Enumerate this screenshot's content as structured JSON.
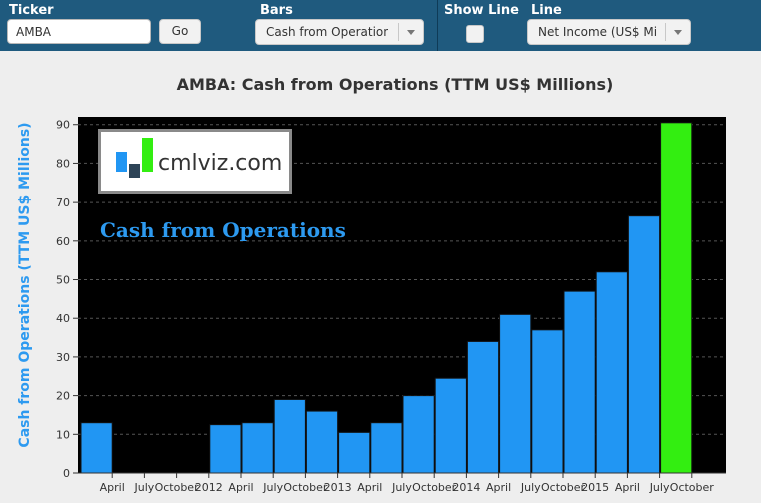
{
  "controls": {
    "ticker_label": "Ticker",
    "ticker_value": "AMBA",
    "go_label": "Go",
    "bars_label": "Bars",
    "bars_value": "Cash from Operations",
    "show_line_label": "Show Line",
    "line_label": "Line",
    "line_value": "Net Income (US$ Millions)"
  },
  "logo": {
    "text": "cmlviz.com"
  },
  "series_caption": "Cash from Operations",
  "colors": {
    "bar": "#2196f3",
    "highlight_bar": "#33ee11",
    "plot_bg": "#000000",
    "header_bg": "#1f5a7e"
  },
  "chart_data": {
    "type": "bar",
    "title": "AMBA: Cash from Operations (TTM US$ Millions)",
    "ylabel": "Cash from Operations (TTM US$ Millions)",
    "ylim": [
      0,
      92
    ],
    "yticks": [
      0,
      10,
      20,
      30,
      40,
      50,
      60,
      70,
      80,
      90
    ],
    "grid": true,
    "x_tick_labels": [
      "April",
      "July",
      "October",
      "2012",
      "April",
      "July",
      "October",
      "2013",
      "April",
      "July",
      "October",
      "2014",
      "April",
      "July",
      "October",
      "2015",
      "April",
      "July",
      "October"
    ],
    "bars": [
      {
        "period": "2011 Q1",
        "value": 13
      },
      {
        "period": "2011 Q2",
        "value": 0
      },
      {
        "period": "2011 Q3",
        "value": 0
      },
      {
        "period": "2011 Q4",
        "value": 0
      },
      {
        "period": "2012 Q1",
        "value": 12.5
      },
      {
        "period": "2012 Q2",
        "value": 13
      },
      {
        "period": "2012 Q3",
        "value": 19
      },
      {
        "period": "2012 Q4",
        "value": 16
      },
      {
        "period": "2013 Q1",
        "value": 10.5
      },
      {
        "period": "2013 Q2",
        "value": 13
      },
      {
        "period": "2013 Q3",
        "value": 20
      },
      {
        "period": "2013 Q4",
        "value": 24.5
      },
      {
        "period": "2014 Q1",
        "value": 34
      },
      {
        "period": "2014 Q2",
        "value": 41
      },
      {
        "period": "2014 Q3",
        "value": 37
      },
      {
        "period": "2014 Q4",
        "value": 47
      },
      {
        "period": "2015 Q1",
        "value": 52
      },
      {
        "period": "2015 Q2",
        "value": 66.5,
        "highlight": false
      },
      {
        "period": "2015 Q3",
        "value": 90.5,
        "highlight": true
      }
    ]
  }
}
